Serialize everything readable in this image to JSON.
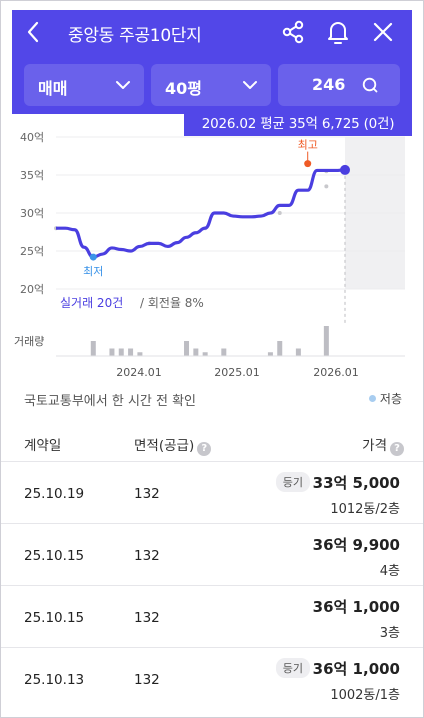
{
  "header": {
    "title": "중앙동 주공10단지",
    "filters": {
      "trade_type": "매매",
      "size": "40평",
      "count": "246"
    }
  },
  "tooltip": "2026.02 평균 35억 6,725 (0건)",
  "chart_data": {
    "type": "line",
    "ylabel_unit": "억",
    "y_ticks": [
      "40억",
      "35억",
      "30억",
      "25억",
      "20억"
    ],
    "ylim": [
      20,
      40
    ],
    "x_ticks": [
      "2024.01",
      "2025.01",
      "2026.01"
    ],
    "max_label": "최고",
    "min_label": "최저",
    "summary": "실거래 20건",
    "turnover": "회전율 8%",
    "volume_label": "거래량",
    "series": [
      {
        "values": [
          28.0,
          28.0,
          27.8,
          25.5,
          24.2,
          24.6,
          25.4,
          25.2,
          25.0,
          25.6,
          26.0,
          26.0,
          25.6,
          26.1,
          26.8,
          27.4,
          28.0,
          30.0,
          30.0,
          29.6,
          29.5,
          29.5,
          29.6,
          30.0,
          31.0,
          31.0,
          33.0,
          33.0,
          35.6,
          35.6,
          35.6,
          35.67
        ]
      }
    ],
    "volume": [
      0,
      0,
      0,
      0,
      4,
      0,
      2,
      2,
      2,
      1,
      0,
      0,
      0,
      0,
      4,
      2,
      1,
      0,
      2,
      0,
      0,
      0,
      0,
      1,
      4,
      0,
      2,
      0,
      0,
      8,
      0,
      0
    ],
    "scatter_points": [
      {
        "x": 0.0,
        "y": 28.0
      },
      {
        "x": 10.0,
        "y": 26.0
      },
      {
        "x": 16.0,
        "y": 28.0
      },
      {
        "x": 24.0,
        "y": 30.0
      },
      {
        "x": 27.0,
        "y": 36.5
      },
      {
        "x": 29.0,
        "y": 33.5
      },
      {
        "x": 29.0,
        "y": 35.5
      }
    ],
    "colors": {
      "line": "#4a3ee0",
      "max": "#ef5b26",
      "min": "#3a93e8",
      "volume": "#bdbdc3",
      "scatter": "#c8c8cc"
    }
  },
  "source": "국토교통부에서 한 시간 전 확인",
  "legend_low": "저층",
  "table": {
    "headers": [
      "계약일",
      "면적(공급)",
      "가격"
    ],
    "rows": [
      {
        "date": "25.10.19",
        "area": "132",
        "price": "33억 5,000",
        "floor": "1012동/2층",
        "badge": "등기"
      },
      {
        "date": "25.10.15",
        "area": "132",
        "price": "36억 9,900",
        "floor": "4층",
        "badge": ""
      },
      {
        "date": "25.10.15",
        "area": "132",
        "price": "36억 1,000",
        "floor": "3층",
        "badge": ""
      },
      {
        "date": "25.10.13",
        "area": "132",
        "price": "36억 1,000",
        "floor": "1002동/1층",
        "badge": "등기"
      }
    ]
  }
}
